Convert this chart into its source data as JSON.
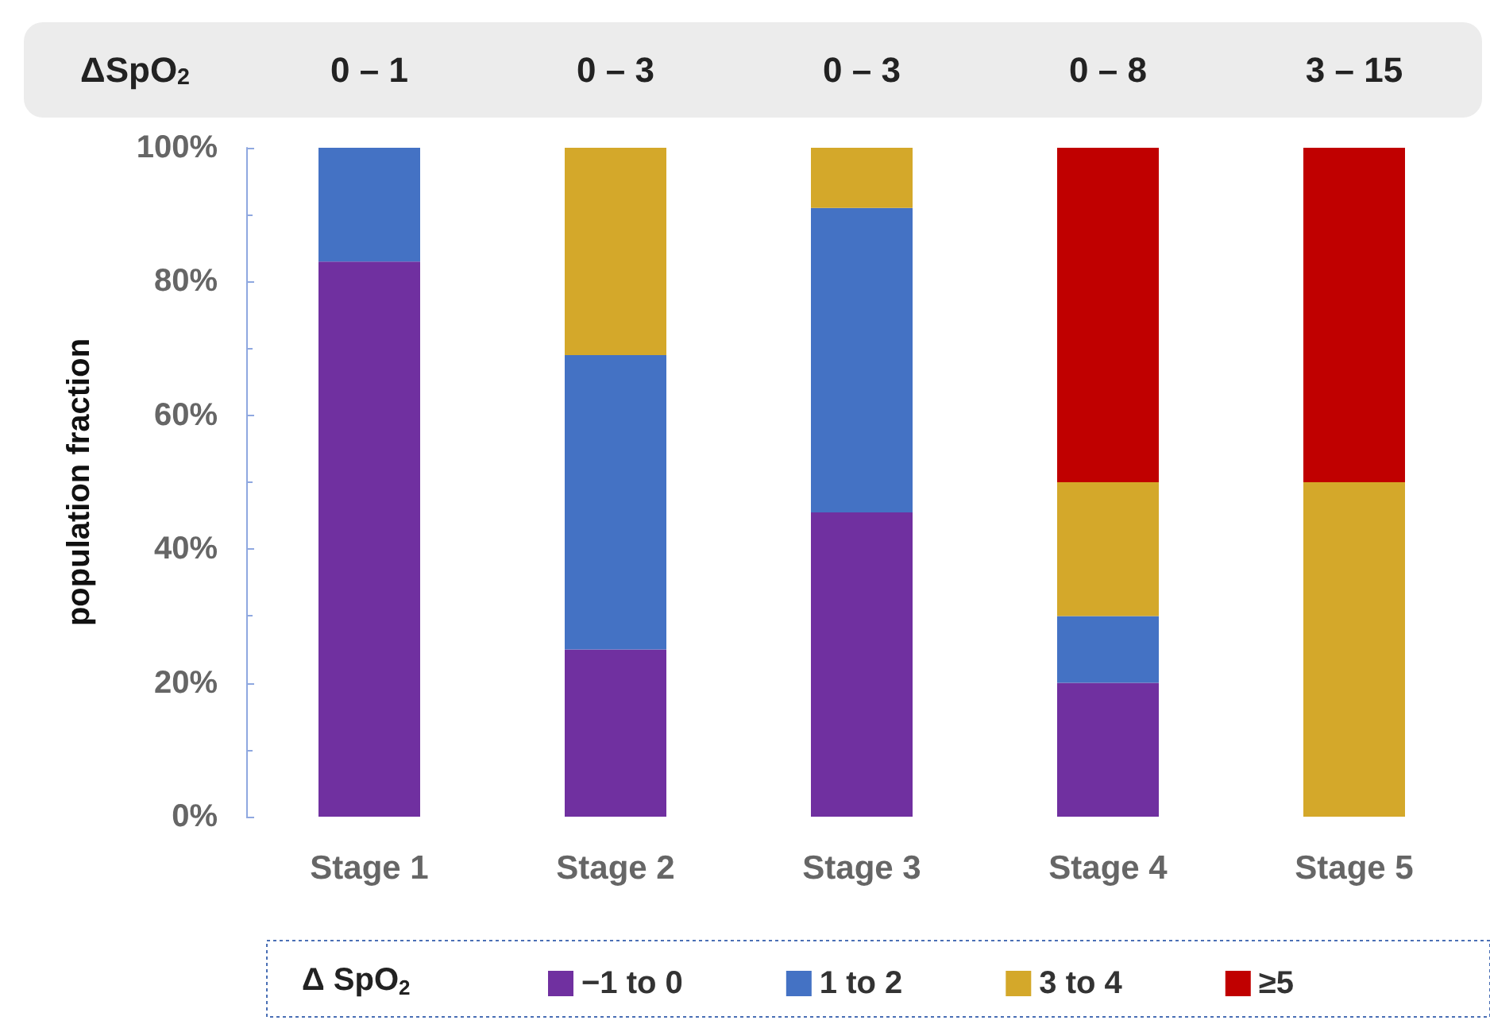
{
  "chart_data": {
    "type": "bar",
    "stacked": true,
    "ylabel": "population fraction",
    "legend_title": "Δ SpO$_{2}$",
    "legend": "bottom",
    "grid": false,
    "annotations": [
      "ΔSpO$_{2}$",
      "0 – 1",
      "0 – 3",
      "0 – 3",
      "0 – 8",
      "3 – 15"
    ],
    "categories": [
      "Stage 1",
      "Stage 2",
      "Stage 3",
      "Stage 4",
      "Stage 5"
    ],
    "ylim": [
      0,
      100
    ],
    "yticks": [
      {
        "value": 0,
        "label": "0%"
      },
      {
        "value": 20,
        "label": "20%"
      },
      {
        "value": 40,
        "label": "40%"
      },
      {
        "value": 60,
        "label": "60%"
      },
      {
        "value": 80,
        "label": "80%"
      },
      {
        "value": 100,
        "label": "100%"
      }
    ],
    "series": [
      {
        "name": "−1 to 0",
        "color": "#7030a0",
        "values": [
          83,
          25,
          45.5,
          20,
          0
        ]
      },
      {
        "name": "1 to 2",
        "color": "#4472c4",
        "values": [
          17,
          44,
          45.5,
          10,
          0
        ]
      },
      {
        "name": "3 to 4",
        "color": "#d4a82a",
        "values": [
          0,
          31,
          9,
          20,
          50
        ]
      },
      {
        "name": "≥5",
        "color": "#c00000",
        "values": [
          0,
          0,
          0,
          50,
          50
        ]
      }
    ]
  }
}
